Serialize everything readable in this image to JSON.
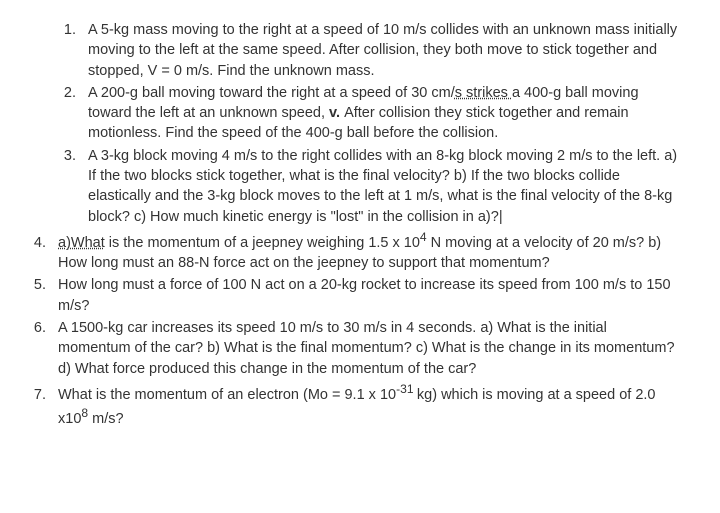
{
  "problems": {
    "p1": "A 5-kg mass moving to the right at a speed of 10 m/s collides with an unknown mass initially moving to the left at the same speed.  After collision, they both move to stick together and stopped, V = 0 m/s. Find the unknown mass.",
    "p2a": "A 200-g ball moving toward the right at a speed of 30 cm/",
    "p2s": "s  strikes ",
    "p2b": "a 400-g ball moving toward the left at an unknown speed, ",
    "p2v": "v. ",
    "p2c": "After collision they stick together and remain motionless. Find the speed of the 400-g ball before the collision.",
    "p3": "A 3-kg block moving 4 m/s to the right collides with an 8-kg block moving 2 m/s to the left. a) If the two blocks stick together, what is the final velocity? b) If the two blocks collide elastically and the 3-kg block moves to the left at 1 m/s, what is the final velocity of the 8-kg block? c) How much kinetic energy is \"lost\" in the collision in a)?|",
    "p4a": "a)What",
    "p4b": " is the momentum of a jeepney weighing 1.5 x 10",
    "p4exp": "4",
    "p4c": " N moving at a velocity of 20 m/s?  b) How long must an 88-N force act on the jeepney to support that momentum?",
    "p5": "How long must a force of 100 N act on a 20-kg rocket to increase its speed from 100 m/s to 150 m/s?",
    "p6": "A 1500-kg car increases its speed 10 m/s to 30 m/s in 4 seconds. a) What is the initial momentum of the car? b) What is the final momentum? c) What is the change in its momentum? d) What force produced this change in the momentum of the car?",
    "p7a": "What is the momentum of an electron (Mo = 9.1 x 10",
    "p7exp1": "-31 ",
    "p7b": "kg) which is moving at a speed of 2.0 x10",
    "p7exp2": "8",
    "p7c": " m/s?"
  }
}
